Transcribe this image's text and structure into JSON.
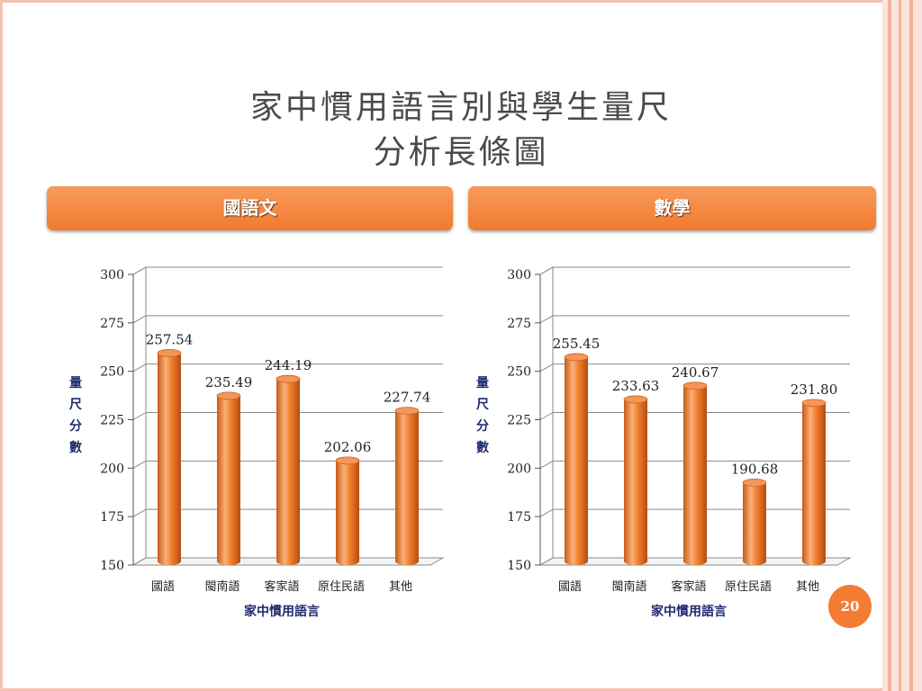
{
  "slide": {
    "title_line1": "家中慣用語言別與學生量尺",
    "title_line2": "分析長條圖",
    "page_number": "20"
  },
  "panels": [
    {
      "heading": "國語文"
    },
    {
      "heading": "數學"
    }
  ],
  "colors": {
    "bar": "#f07e2c",
    "banner": "#f38843",
    "axis_text": "#1f2a6e",
    "border": "#f3c2b0"
  },
  "chart_data": [
    {
      "type": "bar",
      "categories": [
        "國語",
        "閩南語",
        "客家語",
        "原住民語",
        "其他"
      ],
      "values": [
        257.54,
        235.49,
        244.19,
        202.06,
        227.74
      ],
      "value_labels": [
        "257.54",
        "235.49",
        "244.19",
        "202.06",
        "227.74"
      ],
      "xlabel": "家中慣用語言",
      "ylabel": "量尺分數",
      "ylim": [
        150,
        300
      ],
      "yticks": [
        150,
        175,
        200,
        225,
        250,
        275,
        300
      ],
      "grid": true
    },
    {
      "type": "bar",
      "categories": [
        "國語",
        "閩南語",
        "客家語",
        "原住民語",
        "其他"
      ],
      "values": [
        255.45,
        233.63,
        240.67,
        190.68,
        231.8
      ],
      "value_labels": [
        "255.45",
        "233.63",
        "240.67",
        "190.68",
        "231.80"
      ],
      "xlabel": "家中慣用語言",
      "ylabel": "量尺分數",
      "ylim": [
        150,
        300
      ],
      "yticks": [
        150,
        175,
        200,
        225,
        250,
        275,
        300
      ],
      "grid": true
    }
  ]
}
